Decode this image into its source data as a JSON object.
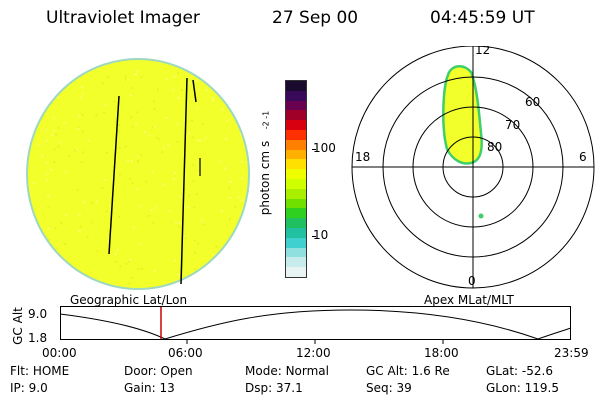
{
  "header": {
    "title": "Ultraviolet Imager",
    "date": "27 Sep 00",
    "time": "04:45:59 UT"
  },
  "colorbar": {
    "label": "photon cm",
    "label_sup1": "-2",
    "label_mid": "s",
    "label_sup2": "-1",
    "ticks": [
      "100",
      "10"
    ],
    "colors": [
      "#1a0a2e",
      "#3a0a5a",
      "#6a0050",
      "#a00028",
      "#d80010",
      "#ff3000",
      "#ff8000",
      "#ffb000",
      "#ffe000",
      "#f0ff00",
      "#d0ff00",
      "#a8f000",
      "#70e000",
      "#30d020",
      "#20c060",
      "#20c0a0",
      "#40d0d0",
      "#90e0e0",
      "#c8ecec",
      "#e8f4f4"
    ],
    "highlight": "#f2ff2a"
  },
  "polar": {
    "mlt_labels": [
      "12",
      "18",
      "6",
      "0"
    ],
    "mlat_labels": [
      "60",
      "70",
      "80"
    ]
  },
  "timeline": {
    "left_label": "Geographic Lat/Lon",
    "right_label": "Apex MLat/MLT",
    "y_axis_label": "GC Alt",
    "y_ticks": [
      "9.0",
      "1.8"
    ],
    "x_ticks": [
      "00:00",
      "06:00",
      "12:00",
      "18:00",
      "23:59"
    ],
    "current_time_color": "#cc0000"
  },
  "status": {
    "row1": [
      {
        "label": "Flt:",
        "value": "HOME"
      },
      {
        "label": "Door:",
        "value": "Open"
      },
      {
        "label": "Mode:",
        "value": "Normal"
      },
      {
        "label": "GC Alt:",
        "value": "1.6 Re"
      },
      {
        "label": "GLat:",
        "value": "-52.6"
      }
    ],
    "row2": [
      {
        "label": "IP:",
        "value": "9.0"
      },
      {
        "label": "Gain:",
        "value": "13"
      },
      {
        "label": "Dsp:",
        "value": "37.1"
      },
      {
        "label": "Seq:",
        "value": "39"
      },
      {
        "label": "GLon:",
        "value": "119.5"
      }
    ]
  }
}
